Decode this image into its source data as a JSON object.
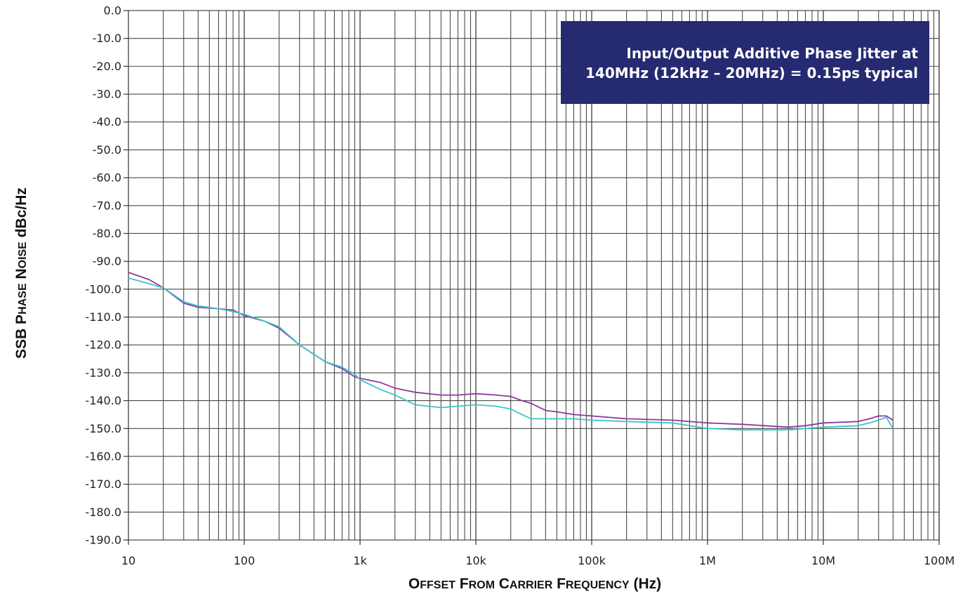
{
  "colors": {
    "series_1": "#8b3a9c",
    "series_2": "#3cc4c8",
    "annotation_bg": "#262a70",
    "annotation_text": "#ffffff",
    "grid": "#4a4a4a"
  },
  "chart_data": {
    "type": "line",
    "title": "",
    "xlabel": "Offset From Carrier Frequency (Hz)",
    "ylabel": "SSB Phase Noise dBc/Hz",
    "x_scale": "log",
    "xlim": [
      10,
      100000000
    ],
    "ylim": [
      -190,
      0
    ],
    "grid": true,
    "x_tick_values": [
      10,
      100,
      1000,
      10000,
      100000,
      1000000,
      10000000,
      100000000
    ],
    "x_tick_labels": [
      "10",
      "100",
      "1k",
      "10k",
      "100k",
      "1M",
      "10M",
      "100M"
    ],
    "y_tick_values": [
      0,
      -10,
      -20,
      -30,
      -40,
      -50,
      -60,
      -70,
      -80,
      -90,
      -100,
      -110,
      -120,
      -130,
      -140,
      -150,
      -160,
      -170,
      -180,
      -190
    ],
    "y_tick_labels": [
      "0.0",
      "-10.0",
      "-20.0",
      "-30.0",
      "-40.0",
      "-50.0",
      "-60.0",
      "-70.0",
      "-80.0",
      "-90.0",
      "-100.0",
      "-110.0",
      "-120.0",
      "-130.0",
      "-140.0",
      "-150.0",
      "-160.0",
      "-170.0",
      "-180.0",
      "-190.0"
    ],
    "annotation": {
      "line1": "Input/Output Additive Phase Jitter at",
      "line2": "140MHz (12kHz – 20MHz) = 0.15ps typical",
      "position": "top-right"
    },
    "series": [
      {
        "color": "#8b3a9c",
        "x": [
          10,
          15,
          20,
          30,
          40,
          60,
          80,
          100,
          150,
          200,
          300,
          500,
          700,
          900,
          1000,
          1500,
          2000,
          3000,
          5000,
          7000,
          10000,
          15000,
          20000,
          25000,
          30000,
          40000,
          50000,
          70000,
          100000,
          200000,
          500000,
          1000000,
          2000000,
          5000000,
          7000000,
          10000000,
          20000000,
          25000000,
          30000000,
          35000000,
          40000000
        ],
        "y": [
          -94,
          -96.5,
          -99.5,
          -105,
          -106.5,
          -107,
          -107.5,
          -109.5,
          -111.5,
          -114,
          -120,
          -126,
          -128.5,
          -131.5,
          -132,
          -133.5,
          -135.5,
          -137,
          -138,
          -138,
          -137.5,
          -138,
          -138.5,
          -140,
          -141,
          -143.5,
          -144,
          -145,
          -145.5,
          -146.5,
          -147,
          -148,
          -148.5,
          -149.5,
          -149,
          -148,
          -147.5,
          -146.5,
          -145.5,
          -145.5,
          -147
        ]
      },
      {
        "color": "#3cc4c8",
        "x": [
          10,
          15,
          20,
          30,
          40,
          60,
          80,
          100,
          150,
          200,
          300,
          500,
          700,
          900,
          1000,
          1500,
          2000,
          3000,
          5000,
          7000,
          10000,
          15000,
          20000,
          25000,
          30000,
          40000,
          50000,
          70000,
          100000,
          200000,
          500000,
          1000000,
          2000000,
          5000000,
          7000000,
          10000000,
          20000000,
          25000000,
          30000000,
          35000000,
          40000000
        ],
        "y": [
          -96,
          -98,
          -99.5,
          -104.5,
          -106,
          -107,
          -108,
          -109,
          -111.5,
          -113.5,
          -120,
          -126,
          -128,
          -130.5,
          -132.5,
          -136,
          -138,
          -141.5,
          -142.5,
          -142,
          -141.5,
          -142,
          -143,
          -145,
          -146.5,
          -146.5,
          -146.5,
          -146.5,
          -147,
          -147.5,
          -148,
          -150,
          -150.5,
          -150.5,
          -150,
          -149.5,
          -149,
          -148,
          -147,
          -146,
          -150
        ]
      }
    ]
  }
}
